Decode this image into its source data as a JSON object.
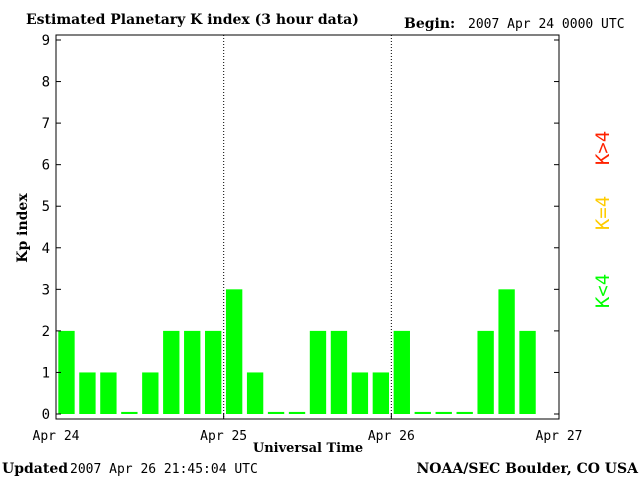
{
  "header": {
    "title": "Estimated Planetary K index (3 hour data)",
    "begin_label": "Begin:",
    "begin_value": "2007 Apr 24 0000 UTC"
  },
  "footer": {
    "updated_label": "Updated",
    "updated_value": "2007 Apr 26 21:45:04 UTC",
    "source": "NOAA/SEC Boulder, CO USA"
  },
  "legend": [
    {
      "label": "K>4",
      "color": "#ff2200"
    },
    {
      "label": "K=4",
      "color": "#ffcc00"
    },
    {
      "label": "K<4",
      "color": "#00ff00"
    }
  ],
  "chart_data": {
    "type": "bar",
    "title": "Estimated Planetary K index (3 hour data)",
    "xlabel": "Universal Time",
    "ylabel": "Kp index",
    "ylim": [
      0,
      9
    ],
    "yticks": [
      "0",
      "1",
      "2",
      "3",
      "4",
      "5",
      "6",
      "7",
      "8",
      "9"
    ],
    "xticks": [
      "Apr 24",
      "Apr 25",
      "Apr 26",
      "Apr 27"
    ],
    "x_interval_hours": 3,
    "bar_color": "#00ff00",
    "day_separators": "dotted",
    "grid": false,
    "values": [
      2,
      1,
      1,
      0.05,
      1,
      2,
      2,
      2,
      3,
      1,
      0.05,
      0.05,
      2,
      2,
      1,
      1,
      2,
      0.05,
      0.05,
      0.05,
      2,
      3,
      2
    ]
  }
}
